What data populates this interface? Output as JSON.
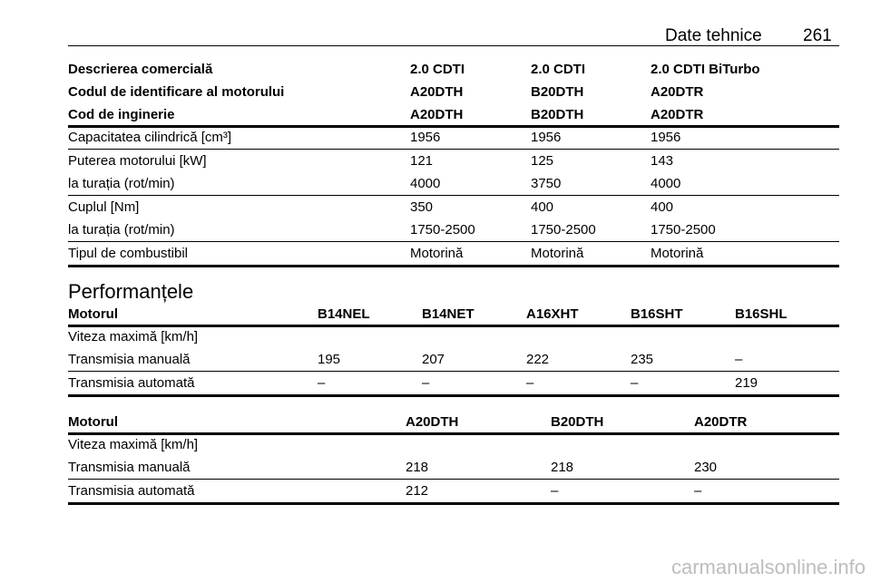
{
  "header": {
    "section": "Date tehnice",
    "page": "261"
  },
  "tables": [
    {
      "header": [
        [
          "Descrierea comercială",
          "2.0 CDTI",
          "2.0 CDTI",
          "2.0 CDTI BiTurbo"
        ],
        [
          "Codul de identificare al motorului",
          "A20DTH",
          "B20DTH",
          "A20DTR"
        ],
        [
          "Cod de inginerie",
          "A20DTH",
          "B20DTH",
          "A20DTR"
        ]
      ],
      "groups": [
        [
          [
            "Capacitatea cilindrică [cm³]",
            "1956",
            "1956",
            "1956"
          ]
        ],
        [
          [
            "Puterea motorului [kW]",
            "121",
            "125",
            "143"
          ],
          [
            "la turația (rot/min)",
            "4000",
            "3750",
            "4000"
          ]
        ],
        [
          [
            "Cuplul [Nm]",
            "350",
            "400",
            "400"
          ],
          [
            "la turația (rot/min)",
            "1750-2500",
            "1750-2500",
            "1750-2500"
          ]
        ],
        [
          [
            "Tipul de combustibil",
            "Motorină",
            "Motorină",
            "Motorină"
          ]
        ]
      ]
    },
    {
      "title": "Performanțele",
      "header": [
        [
          "Motorul",
          "B14NEL",
          "B14NET",
          "A16XHT",
          "B16SHT",
          "B16SHL"
        ]
      ],
      "groups": [
        [
          [
            "Viteza maximă [km/h]"
          ],
          [
            "Transmisia manuală",
            "195",
            "207",
            "222",
            "235",
            "–"
          ]
        ],
        [
          [
            "Transmisia automată",
            "–",
            "–",
            "–",
            "–",
            "219"
          ]
        ]
      ]
    },
    {
      "header": [
        [
          "Motorul",
          "A20DTH",
          "B20DTH",
          "A20DTR"
        ]
      ],
      "groups": [
        [
          [
            "Viteza maximă [km/h]"
          ],
          [
            "Transmisia manuală",
            "218",
            "218",
            "230"
          ]
        ],
        [
          [
            "Transmisia automată",
            "212",
            "–",
            "–"
          ]
        ]
      ]
    }
  ],
  "footer": {
    "watermark": "carmanualsonline.info"
  }
}
